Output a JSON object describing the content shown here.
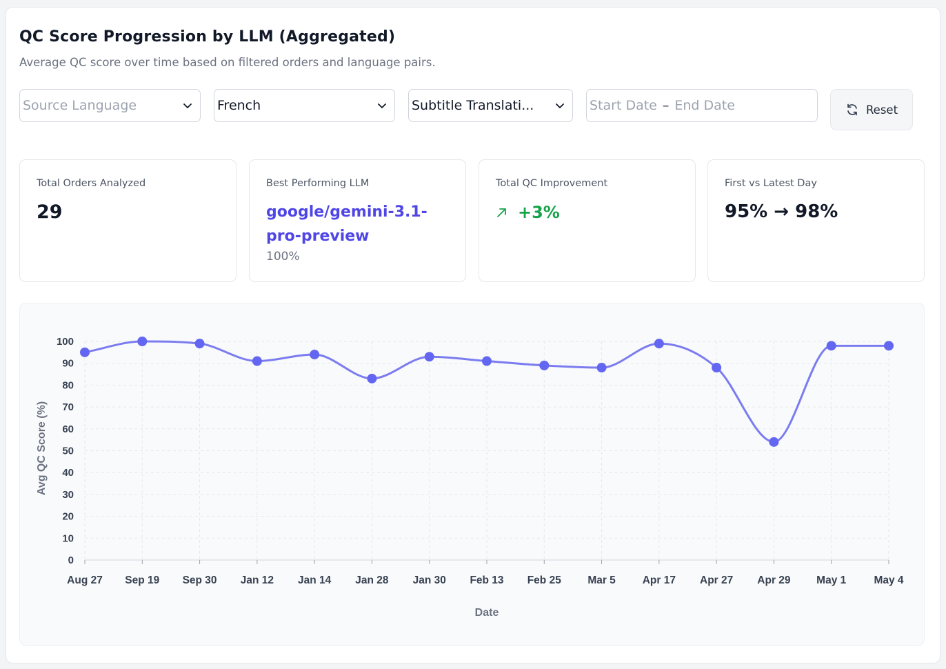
{
  "header": {
    "title": "QC Score Progression by LLM (Aggregated)",
    "subtitle": "Average QC score over time based on filtered orders and language pairs."
  },
  "filters": {
    "source_language_placeholder": "Source Language",
    "target_language_value": "French",
    "service_value": "Subtitle Translati...",
    "date_start_placeholder": "Start Date",
    "date_separator": "–",
    "date_end_placeholder": "End Date",
    "reset_label": "Reset"
  },
  "stats": {
    "total_orders_label": "Total Orders Analyzed",
    "total_orders_value": "29",
    "best_llm_label": "Best Performing LLM",
    "best_llm_value": "google/gemini-3.1-pro-preview",
    "best_llm_score": "100%",
    "improvement_label": "Total QC Improvement",
    "improvement_value": "+3%",
    "first_latest_label": "First vs Latest Day",
    "first_latest_value": "95% → 98%"
  },
  "colors": {
    "accent": "#6366f1",
    "line": "#7b7cf0",
    "positive": "#16a34a"
  },
  "chart_data": {
    "type": "line",
    "title": "",
    "xlabel": "Date",
    "ylabel": "Avg QC Score (%)",
    "ylim": [
      0,
      100
    ],
    "yticks": [
      0,
      10,
      20,
      30,
      40,
      50,
      60,
      70,
      80,
      90,
      100
    ],
    "grid": true,
    "categories": [
      "Aug 27",
      "Sep 19",
      "Sep 30",
      "Jan 12",
      "Jan 14",
      "Jan 28",
      "Jan 30",
      "Feb 13",
      "Feb 25",
      "Mar 5",
      "Apr 17",
      "Apr 27",
      "Apr 29",
      "May 1",
      "May 4"
    ],
    "series": [
      {
        "values": [
          95,
          100,
          99,
          91,
          94,
          83,
          93,
          91,
          89,
          88,
          99,
          88,
          54,
          98,
          98
        ]
      }
    ]
  }
}
